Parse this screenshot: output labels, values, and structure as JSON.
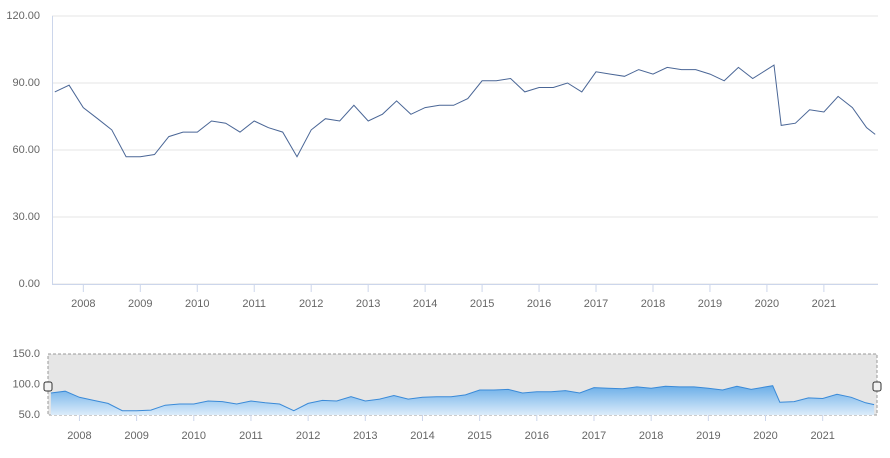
{
  "chart_data": {
    "type": "line",
    "x": [
      2007.5,
      2007.75,
      2008.0,
      2008.25,
      2008.5,
      2008.75,
      2009.0,
      2009.25,
      2009.5,
      2009.75,
      2010.0,
      2010.25,
      2010.5,
      2010.75,
      2011.0,
      2011.25,
      2011.5,
      2011.75,
      2012.0,
      2012.25,
      2012.5,
      2012.75,
      2013.0,
      2013.25,
      2013.5,
      2013.75,
      2014.0,
      2014.25,
      2014.5,
      2014.75,
      2015.0,
      2015.25,
      2015.5,
      2015.75,
      2016.0,
      2016.25,
      2016.5,
      2016.75,
      2017.0,
      2017.25,
      2017.5,
      2017.75,
      2018.0,
      2018.25,
      2018.5,
      2018.75,
      2019.0,
      2019.25,
      2019.5,
      2019.75,
      2020.0,
      2020.125,
      2020.25,
      2020.5,
      2020.75,
      2021.0,
      2021.25,
      2021.5,
      2021.75,
      2021.9
    ],
    "series": [
      {
        "color": "#4a6696",
        "values": [
          86,
          89,
          79,
          74,
          69,
          57,
          57,
          58,
          66,
          68,
          68,
          73,
          72,
          68,
          73,
          70,
          68,
          57,
          69,
          74,
          73,
          80,
          73,
          76,
          82,
          76,
          79,
          80,
          80,
          83,
          91,
          91,
          92,
          86,
          88,
          88,
          90,
          86,
          95,
          94,
          93,
          96,
          94,
          97,
          96,
          96,
          94,
          91,
          97,
          92,
          96,
          98,
          71,
          72,
          78,
          77,
          84,
          79,
          70,
          67
        ]
      }
    ],
    "xlim": [
      2007.45,
      2021.95
    ],
    "xticks": [
      2008,
      2009,
      2010,
      2011,
      2012,
      2013,
      2014,
      2015,
      2016,
      2017,
      2018,
      2019,
      2020,
      2021
    ],
    "ylim": [
      0,
      120
    ],
    "yticks": [
      {
        "value": 0,
        "label": "0.00"
      },
      {
        "value": 30,
        "label": "30.00"
      },
      {
        "value": 60,
        "label": "60.00"
      },
      {
        "value": 90,
        "label": "90.00"
      },
      {
        "value": 120,
        "label": "120.00"
      }
    ],
    "grid": true,
    "navigator": {
      "ylim": [
        50,
        150
      ],
      "yticks": [
        {
          "value": 50,
          "label": "50.0"
        },
        {
          "value": 100,
          "label": "100.0"
        },
        {
          "value": 150,
          "label": "150.0"
        }
      ],
      "color": "#3a8ad8"
    }
  }
}
